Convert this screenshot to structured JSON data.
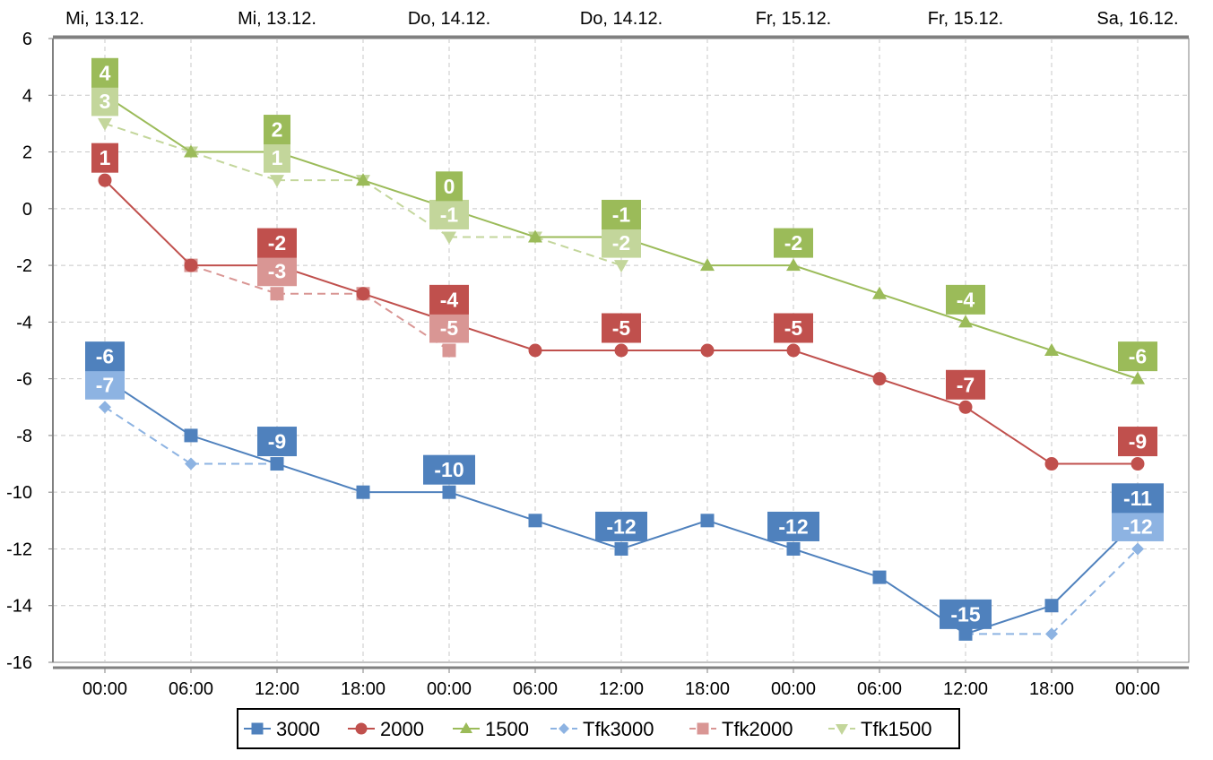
{
  "chart_data": {
    "type": "line",
    "x_bottom_labels": [
      "00:00",
      "06:00",
      "12:00",
      "18:00",
      "00:00",
      "06:00",
      "12:00",
      "18:00",
      "00:00",
      "06:00",
      "12:00",
      "18:00",
      "00:00"
    ],
    "x_top_labels": [
      "Mi, 13.12.",
      "Mi, 13.12.",
      "Do, 14.12.",
      "Do, 14.12.",
      "Fr, 15.12.",
      "Fr, 15.12.",
      "Sa, 16.12."
    ],
    "y_ticks": [
      "6",
      "4",
      "2",
      "0",
      "-2",
      "-4",
      "-6",
      "-8",
      "-10",
      "-12",
      "-14",
      "-16"
    ],
    "ylim": [
      -16,
      6
    ],
    "grid": true,
    "legend_position": "bottom",
    "series": [
      {
        "name": "3000",
        "color": "#4f81bd",
        "marker": "square",
        "dashed": false,
        "values": [
          -6,
          -8,
          -9,
          -10,
          -10,
          -11,
          -12,
          -11,
          -12,
          -13,
          -15,
          -14,
          -11
        ],
        "labels": [
          "-6",
          null,
          "-9",
          null,
          "-10",
          null,
          "-12",
          null,
          "-12",
          null,
          "-15",
          null,
          "-11"
        ]
      },
      {
        "name": "2000",
        "color": "#c0504d",
        "marker": "circle",
        "dashed": false,
        "values": [
          1,
          -2,
          -2,
          -3,
          -4,
          -5,
          -5,
          -5,
          -5,
          -6,
          -7,
          -9,
          -9
        ],
        "labels": [
          "1",
          null,
          "-2",
          null,
          "-4",
          null,
          "-5",
          null,
          "-5",
          null,
          "-7",
          null,
          "-9"
        ]
      },
      {
        "name": "1500",
        "color": "#9bbb59",
        "marker": "triangle-up",
        "dashed": false,
        "values": [
          4,
          2,
          2,
          1,
          0,
          -1,
          -1,
          -2,
          -2,
          -3,
          -4,
          -5,
          -6
        ],
        "labels": [
          "4",
          null,
          "2",
          null,
          "0",
          null,
          "-1",
          null,
          "-2",
          null,
          "-4",
          null,
          "-6"
        ]
      },
      {
        "name": "Tfk3000",
        "color": "#8db3e2",
        "marker": "diamond",
        "dashed": true,
        "values": [
          -7,
          -9,
          -9,
          null,
          null,
          null,
          null,
          null,
          null,
          null,
          -15,
          -15,
          -12
        ],
        "labels": [
          "-7",
          null,
          null,
          null,
          null,
          null,
          null,
          null,
          null,
          null,
          null,
          null,
          "-12"
        ]
      },
      {
        "name": "Tfk2000",
        "color": "#d99694",
        "marker": "square",
        "dashed": true,
        "values": [
          null,
          -2,
          -3,
          -3,
          -5,
          null,
          null,
          null,
          null,
          null,
          null,
          null,
          null
        ],
        "labels": [
          null,
          null,
          "-3",
          null,
          "-5",
          null,
          null,
          null,
          null,
          null,
          null,
          null,
          null
        ]
      },
      {
        "name": "Tfk1500",
        "color": "#c3d69b",
        "marker": "triangle-down",
        "dashed": true,
        "values": [
          3,
          2,
          1,
          1,
          -1,
          -1,
          -2,
          null,
          null,
          null,
          null,
          null,
          null
        ],
        "labels": [
          "3",
          null,
          "1",
          null,
          "-1",
          null,
          "-2",
          null,
          null,
          null,
          null,
          null,
          null
        ]
      }
    ]
  }
}
